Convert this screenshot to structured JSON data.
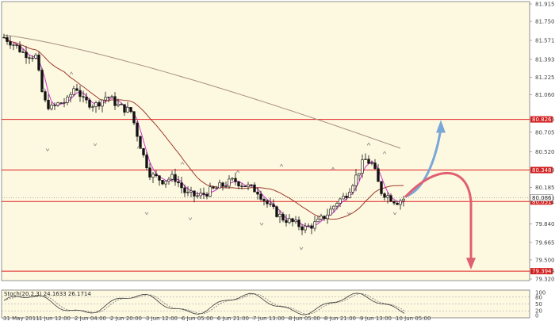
{
  "colors": {
    "background": "#fdf9e1",
    "frame": "#777777",
    "candle": "#111111",
    "level_line": "#e01e1e",
    "ma_fast": "#cc33cc",
    "ma_mid": "#a03a2e",
    "ma_slow": "#a89080",
    "fractal": "#888888",
    "arrow_up": "#7aa7d8",
    "arrow_down": "#e06070",
    "price_tag": "#d12020",
    "current_tag": "#ffffff"
  },
  "price_axis": {
    "labels": [
      "81.915",
      "81.750",
      "81.571",
      "81.393",
      "81.225",
      "81.060",
      "80.826",
      "80.705",
      "80.520",
      "80.348",
      "80.185",
      "80.086",
      "80.051",
      "79.840",
      "79.665",
      "79.500",
      "79.394",
      "79.320"
    ]
  },
  "levels": [
    {
      "label": "80.826",
      "value": 80.826
    },
    {
      "label": "80.348",
      "value": 80.348
    },
    {
      "label": "80.051",
      "value": 80.051
    },
    {
      "label": "79.394",
      "value": 79.394
    }
  ],
  "current_price": "80.086",
  "time_axis": {
    "labels": [
      "31 May 2011",
      "1 Jun 12:00",
      "2 Jun 04:00",
      "2 Jun 20:00",
      "3 Jun 12:00",
      "6 Jun 05:00",
      "6 Jun 21:00",
      "7 Jun 13:00",
      "8 Jun 05:00",
      "8 Jun 21:00",
      "9 Jun 13:00",
      "10 Jun 05:00"
    ]
  },
  "stochastic": {
    "title": "Stoch(20,2,3) 24.1633 26.1714",
    "levels": [
      "100",
      "80",
      "50",
      "20",
      "0"
    ]
  },
  "overlays": {
    "up_arrow": "blue-up-arrow-icon",
    "down_arrow": "red-down-arrow-icon"
  }
}
